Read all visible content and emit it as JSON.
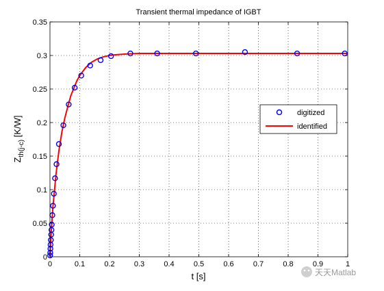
{
  "chart_data": {
    "type": "line",
    "title": "Transient thermal impedance of IGBT",
    "xlabel": "t [s]",
    "ylabel": {
      "main": "Z",
      "subscript": "th(j-c)",
      "unit": " [K/W]"
    },
    "xlim": [
      0,
      1
    ],
    "ylim": [
      0,
      0.35
    ],
    "xticks": [
      0,
      0.1,
      0.2,
      0.3,
      0.4,
      0.5,
      0.6,
      0.7,
      0.8,
      0.9,
      1
    ],
    "xtick_labels": [
      "0",
      "0.1",
      "0.2",
      "0.3",
      "0.4",
      "0.5",
      "0.6",
      "0.7",
      "0.8",
      "0.9",
      "1"
    ],
    "yticks": [
      0,
      0.05,
      0.1,
      0.15,
      0.2,
      0.25,
      0.3,
      0.35
    ],
    "ytick_labels": [
      "0",
      "0.05",
      "0.1",
      "0.15",
      "0.2",
      "0.25",
      "0.3",
      "0.35"
    ],
    "grid": true,
    "legend_position": "right-middle",
    "series": [
      {
        "name": "digitized",
        "style": "markers",
        "marker": "circle",
        "color": "#0000ff",
        "x": [
          0.0005,
          0.001,
          0.0015,
          0.002,
          0.003,
          0.004,
          0.005,
          0.006,
          0.008,
          0.01,
          0.013,
          0.017,
          0.022,
          0.03,
          0.045,
          0.063,
          0.083,
          0.105,
          0.135,
          0.17,
          0.205,
          0.27,
          0.36,
          0.49,
          0.655,
          0.83,
          0.99
        ],
        "y": [
          0.002,
          0.006,
          0.012,
          0.018,
          0.025,
          0.033,
          0.04,
          0.048,
          0.062,
          0.076,
          0.094,
          0.117,
          0.138,
          0.168,
          0.196,
          0.227,
          0.252,
          0.27,
          0.285,
          0.293,
          0.299,
          0.303,
          0.303,
          0.303,
          0.305,
          0.303,
          0.303
        ]
      },
      {
        "name": "identified",
        "style": "line",
        "color": "#ff0000",
        "x": [
          0,
          0.002,
          0.005,
          0.01,
          0.015,
          0.02,
          0.03,
          0.04,
          0.05,
          0.06,
          0.07,
          0.08,
          0.09,
          0.1,
          0.12,
          0.14,
          0.16,
          0.18,
          0.2,
          0.22,
          0.25,
          0.3,
          0.35,
          0.4,
          0.5,
          0.6,
          0.7,
          0.8,
          0.9,
          1.0
        ],
        "y": [
          0,
          0.02,
          0.042,
          0.075,
          0.098,
          0.122,
          0.158,
          0.186,
          0.207,
          0.224,
          0.24,
          0.251,
          0.262,
          0.27,
          0.282,
          0.29,
          0.295,
          0.298,
          0.3,
          0.301,
          0.302,
          0.303,
          0.303,
          0.303,
          0.303,
          0.303,
          0.303,
          0.303,
          0.303,
          0.303
        ]
      }
    ]
  },
  "watermark": "天天Matlab"
}
